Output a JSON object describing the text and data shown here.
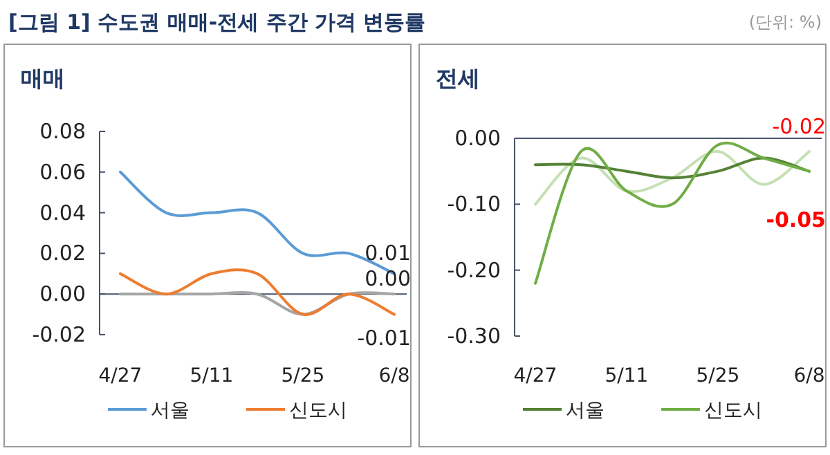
{
  "chart_data": [
    {
      "type": "line",
      "title": "[그림 1] 수도권 매매-전세 주간 가격 변동률",
      "subtitle": "매매",
      "annotations": [
        "(단위: %)"
      ],
      "categories": [
        "4/27",
        null,
        "5/11",
        null,
        "5/25",
        null,
        "6/8"
      ],
      "series": [
        {
          "name": "서울",
          "color": "#5b9bd5",
          "values": [
            0.06,
            0.04,
            0.04,
            0.04,
            0.02,
            0.02,
            0.01
          ],
          "value_labels": [
            null,
            null,
            null,
            null,
            null,
            null,
            "0.01"
          ]
        },
        {
          "color": "#a5a5a5",
          "values": [
            0.0,
            0.0,
            0.0,
            0.0,
            -0.01,
            0.0,
            0.0
          ],
          "value_labels": [
            null,
            null,
            null,
            null,
            null,
            null,
            "0.00"
          ]
        },
        {
          "name": "신도시",
          "color": "#ed7d31",
          "values": [
            0.01,
            0.0,
            0.01,
            0.01,
            -0.01,
            0.0,
            -0.01
          ],
          "value_labels": [
            null,
            null,
            null,
            null,
            null,
            null,
            "-0.01"
          ]
        }
      ],
      "ylim": [
        -0.02,
        0.08
      ],
      "yticks": [
        {
          "value": 0.08,
          "label": "0.08"
        },
        {
          "value": 0.06,
          "label": "0.06"
        },
        {
          "value": 0.04,
          "label": "0.04"
        },
        {
          "value": 0.02,
          "label": "0.02"
        },
        {
          "value": 0,
          "label": "0.00"
        },
        {
          "value": -0.02,
          "label": "-0.02"
        }
      ],
      "legend": "bottom",
      "marker": "none",
      "line_style": "solid"
    },
    {
      "type": "line",
      "subtitle": "전세",
      "categories": [
        "4/27",
        null,
        "5/11",
        null,
        "5/25",
        null,
        "6/8"
      ],
      "series": [
        {
          "color": "#c5e0b4",
          "values": [
            -0.1,
            -0.03,
            -0.08,
            -0.06,
            -0.02,
            -0.07,
            -0.02
          ],
          "value_labels": [
            null,
            null,
            null,
            null,
            null,
            null,
            "-0.02"
          ]
        },
        {
          "name": "서울",
          "color": "#548235",
          "values": [
            -0.04,
            -0.04,
            -0.05,
            -0.06,
            -0.05,
            -0.03,
            -0.05
          ],
          "value_labels": [
            null,
            null,
            null,
            null,
            null,
            null,
            "**-0.05**"
          ]
        },
        {
          "name": "신도시",
          "color": "#70ad47",
          "values": [
            -0.22,
            -0.02,
            -0.08,
            -0.1,
            -0.01,
            -0.03,
            -0.05
          ]
        }
      ],
      "ylim": [
        -0.3,
        0
      ],
      "yticks": [
        {
          "value": 0,
          "label": "0.00"
        },
        {
          "value": -0.1,
          "label": "-0.10"
        },
        {
          "value": -0.2,
          "label": "-0.20"
        },
        {
          "value": -0.3,
          "label": "-0.30"
        }
      ],
      "legend": "bottom",
      "marker": "none",
      "line_style": "solid"
    }
  ]
}
